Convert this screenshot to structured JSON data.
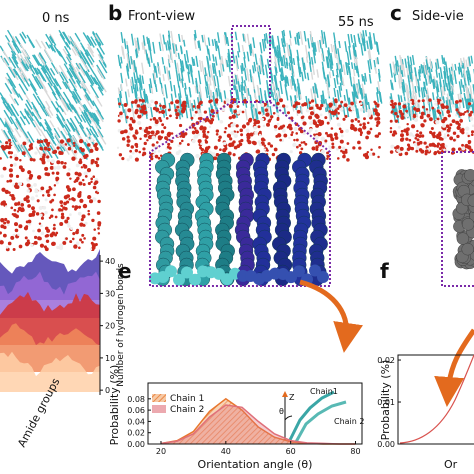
{
  "panel_a": {
    "time": "0 ns",
    "hbonds": {
      "y_label": "Number of hydrogen bonds",
      "x_label": "Amide groups",
      "ylim": [
        -1.5,
        41.9
      ],
      "yticks": [
        0,
        10,
        20,
        30,
        40
      ]
    }
  },
  "panel_b": {
    "letter": "b",
    "title": "Front-view",
    "time": "55 ns"
  },
  "panel_c": {
    "letter": "c",
    "title": "Side-vie"
  },
  "panel_e": {
    "letter": "e",
    "chart": {
      "type": "line",
      "y_label": "Probability (%)",
      "x_label": "Orientation angle (θ)",
      "x": [
        20,
        25,
        30,
        35,
        40,
        45,
        50,
        55,
        60,
        65,
        70,
        75,
        80
      ],
      "series": [
        {
          "name": "Chain 1",
          "color": "#e8772e",
          "values": [
            0.001,
            0.006,
            0.022,
            0.058,
            0.08,
            0.06,
            0.03,
            0.012,
            0.004,
            0.001,
            0,
            0,
            0
          ]
        },
        {
          "name": "Chain 2",
          "color": "#e0707a",
          "values": [
            0.001,
            0.005,
            0.018,
            0.048,
            0.069,
            0.065,
            0.04,
            0.018,
            0.006,
            0.002,
            0.001,
            0,
            0
          ]
        }
      ],
      "xlim": [
        16,
        82
      ],
      "ylim": [
        0,
        0.108
      ],
      "xticks": [
        20,
        40,
        60,
        80
      ],
      "yticks": [
        {
          "value": 0,
          "label": "0.00"
        },
        {
          "value": 0.02,
          "label": "0.02"
        },
        {
          "value": 0.04,
          "label": "0.04"
        },
        {
          "value": 0.06,
          "label": "0.06"
        },
        {
          "value": 0.08,
          "label": "0.08"
        }
      ]
    },
    "inset": {
      "axis": "Z",
      "chain_1": "Chain1",
      "chain_2": "Chain 2",
      "angle": "θ"
    }
  },
  "panel_f": {
    "letter": "f",
    "chart": {
      "y_label": "Probability (%)",
      "x_label": "Or",
      "ylim": [
        0,
        0.0212
      ],
      "yticks": [
        {
          "value": 0,
          "label": "0.00"
        },
        {
          "value": 0.01,
          "label": "0.01"
        },
        {
          "value": 0.02,
          "label": "0.02"
        }
      ]
    }
  }
}
